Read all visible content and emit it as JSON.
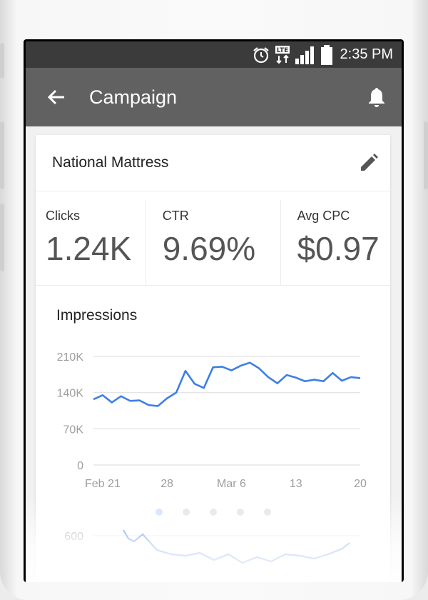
{
  "status_bar": {
    "time": "2:35 PM",
    "icons": [
      "alarm-icon",
      "lte-icon",
      "signal-icon",
      "battery-icon"
    ],
    "lte_label": "LTE"
  },
  "app_bar": {
    "title": "Campaign",
    "back_icon": "arrow-left-icon",
    "notify_icon": "bell-icon"
  },
  "campaign": {
    "name": "National Mattress",
    "edit_icon": "pencil-icon"
  },
  "metrics": [
    {
      "label": "Clicks",
      "value": "1.24K"
    },
    {
      "label": "CTR",
      "value": "9.69%"
    },
    {
      "label": "Avg CPC",
      "value": "$0.97"
    }
  ],
  "impressions": {
    "title": "Impressions"
  },
  "pager": {
    "count": 5,
    "active": 0
  },
  "colors": {
    "app_bar": "#616161",
    "status_bar": "#3b3b3b",
    "line": "#3d7fe6",
    "grid": "#e0e0e0",
    "axis_text": "#9e9e9e"
  },
  "chart_data": {
    "type": "line",
    "title": "Impressions",
    "xlabel": "",
    "ylabel": "",
    "y_ticks": [
      "0",
      "70K",
      "140K",
      "210K"
    ],
    "y_tick_values": [
      0,
      70000,
      140000,
      210000
    ],
    "ylim": [
      0,
      210000
    ],
    "x_tick_labels": [
      "Feb 21",
      "28",
      "Mar 6",
      "13",
      "20"
    ],
    "x_tick_days": [
      1,
      8,
      15,
      22,
      29
    ],
    "x_range_days": [
      0,
      29
    ],
    "grid": true,
    "series": [
      {
        "values": [
          127000,
          135000,
          121000,
          133000,
          124000,
          125000,
          116000,
          114000,
          129000,
          140000,
          182000,
          157000,
          149000,
          189000,
          190000,
          183000,
          192000,
          198000,
          187000,
          170000,
          158000,
          174000,
          169000,
          162000,
          165000,
          162000,
          178000,
          163000,
          170000,
          168000
        ]
      }
    ]
  },
  "second_chart": {
    "y_tick": "600"
  }
}
